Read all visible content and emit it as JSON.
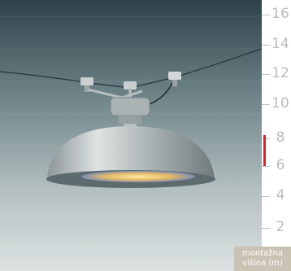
{
  "scale": {
    "ticks": [
      "16",
      "14",
      "12",
      "10",
      "8",
      "6",
      "4",
      "2"
    ],
    "unit_caption_line1": "montažna",
    "unit_caption_line2": "višina (m)",
    "marker_color": "#e02020",
    "marker_range_m": [
      6,
      8
    ]
  },
  "photo": {
    "subject": "pendant-lamp",
    "bg_top": "#2d4249",
    "bg_bottom": "#d2d8d8"
  }
}
